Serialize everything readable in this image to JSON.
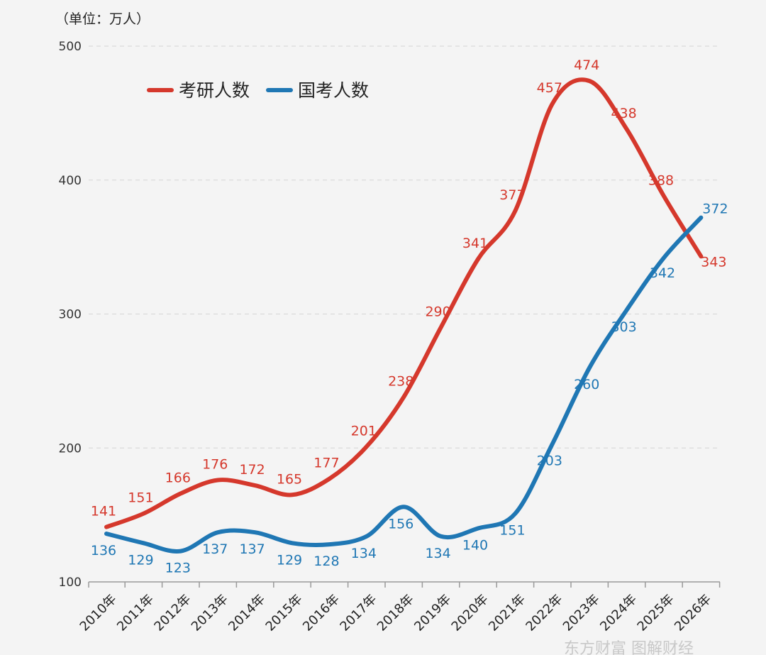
{
  "chart_data": {
    "type": "line",
    "unit_label": "（单位：万人）",
    "categories": [
      "2010年",
      "2011年",
      "2012年",
      "2013年",
      "2014年",
      "2015年",
      "2016年",
      "2017年",
      "2018年",
      "2019年",
      "2020年",
      "2021年",
      "2022年",
      "2023年",
      "2024年",
      "2025年",
      "2026年"
    ],
    "ylim": [
      100,
      500
    ],
    "yticks": [
      100,
      200,
      300,
      400,
      500
    ],
    "grid": true,
    "legend_position": "top-left",
    "series": [
      {
        "name": "考研人数",
        "color": "#d5382c",
        "points": [
          {
            "x": "2010年",
            "value": 141
          },
          {
            "x": "2011年",
            "value": 151
          },
          {
            "x": "2012年",
            "value": 166
          },
          {
            "x": "2013年",
            "value": 176
          },
          {
            "x": "2014年",
            "value": 172
          },
          {
            "x": "2015年",
            "value": 165
          },
          {
            "x": "2016年",
            "value": 177
          },
          {
            "x": "2017年",
            "value": 201
          },
          {
            "x": "2018年",
            "value": 238
          },
          {
            "x": "2019年",
            "value": 290
          },
          {
            "x": "2020年",
            "value": 341
          },
          {
            "x": "2021年",
            "value": 377
          },
          {
            "x": "2022年",
            "value": 457
          },
          {
            "x": "2023年",
            "value": 474
          },
          {
            "x": "2024年",
            "value": 438
          },
          {
            "x": "2025年",
            "value": 388
          },
          {
            "x": "2026年",
            "value": 343
          }
        ]
      },
      {
        "name": "国考人数",
        "color": "#1f77b4",
        "points": [
          {
            "x": "2010年",
            "value": 136
          },
          {
            "x": "2011年",
            "value": 129
          },
          {
            "x": "2012年",
            "value": 123
          },
          {
            "x": "2013年",
            "value": 137
          },
          {
            "x": "2014年",
            "value": 137
          },
          {
            "x": "2015年",
            "value": 129
          },
          {
            "x": "2016年",
            "value": 128
          },
          {
            "x": "2017年",
            "value": 134
          },
          {
            "x": "2018年",
            "value": 156
          },
          {
            "x": "2019年",
            "value": 134
          },
          {
            "x": "2020年",
            "value": 140
          },
          {
            "x": "2021年",
            "value": 151
          },
          {
            "x": "2022年",
            "value": 203
          },
          {
            "x": "2023年",
            "value": 260
          },
          {
            "x": "2024年",
            "value": 303
          },
          {
            "x": "2025年",
            "value": 342
          },
          {
            "x": "2026年",
            "value": 372
          }
        ]
      }
    ]
  },
  "watermark": "东方财富 图解财经"
}
